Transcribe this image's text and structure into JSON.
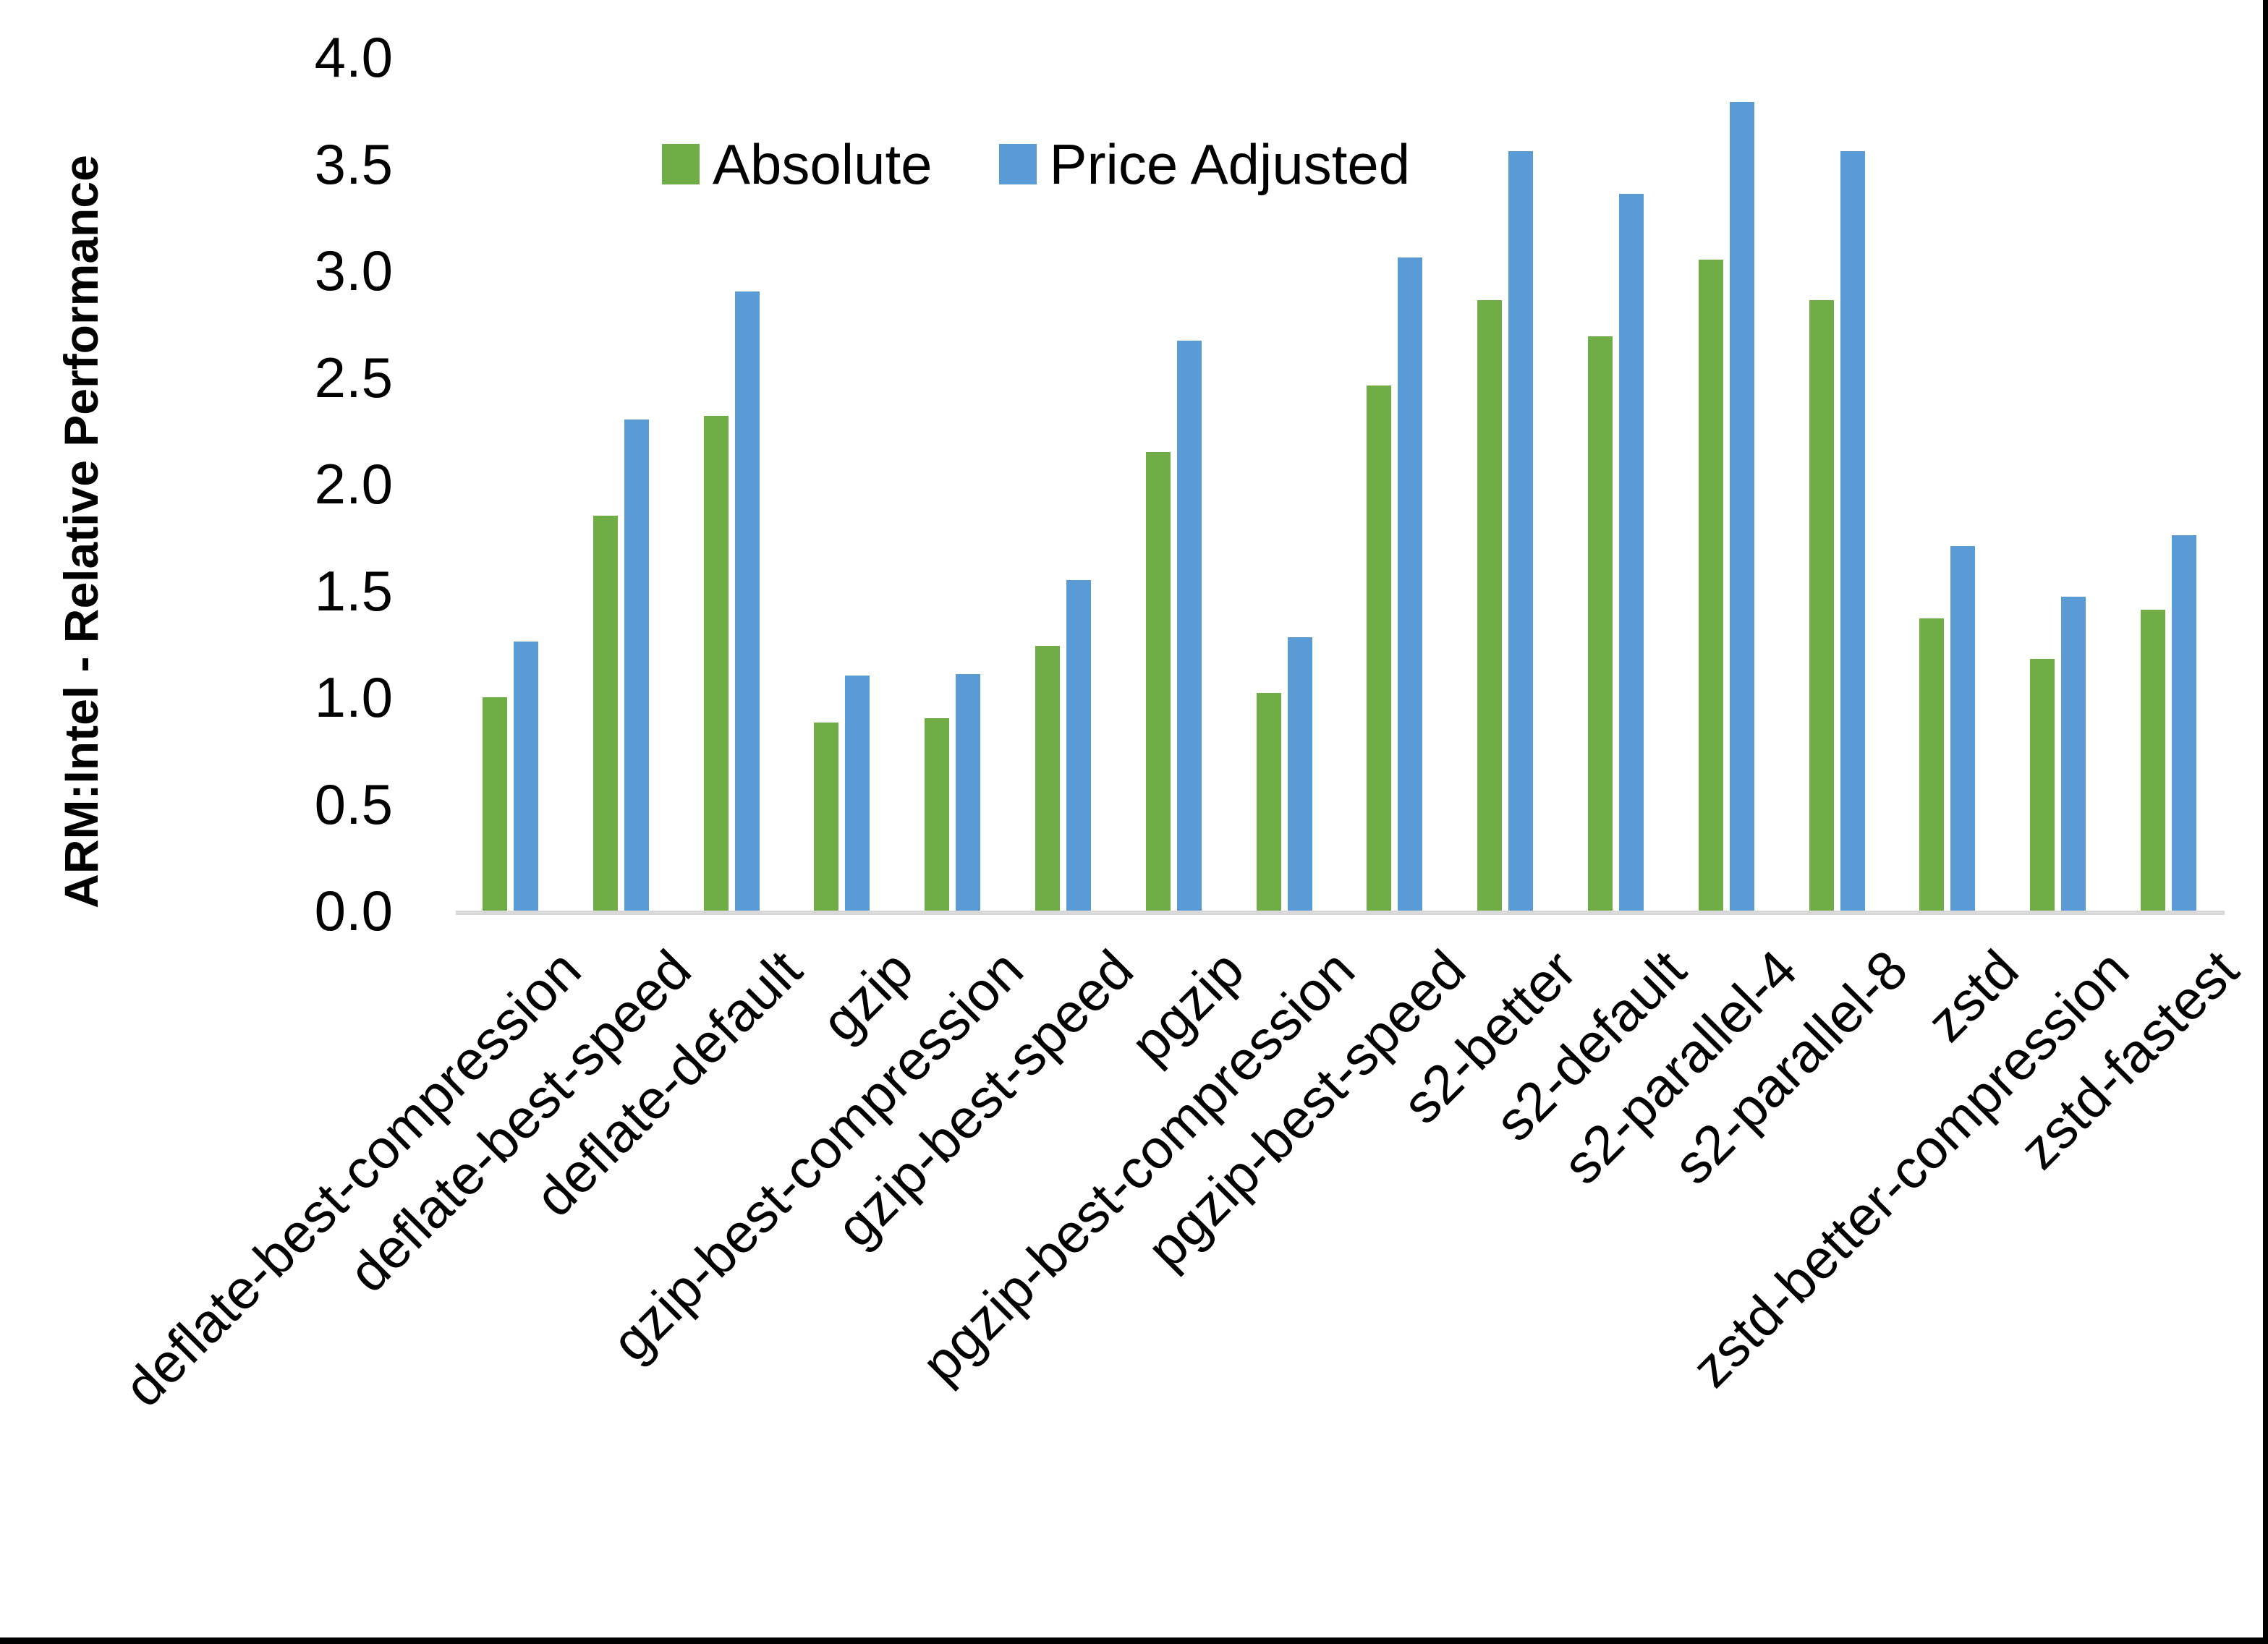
{
  "colors": {
    "absolute_series": "#70AD47",
    "price_adjusted_series": "#5B9BD5",
    "axis_line": "#D9D9D9",
    "frame_border": "#000000",
    "text": "#000000"
  },
  "chart_data": {
    "type": "bar",
    "title": "",
    "xlabel": "",
    "ylabel": "ARM:Intel - Relative Performance",
    "ylim": [
      0.0,
      4.0
    ],
    "ytick_step": 0.5,
    "ytick_labels": [
      "0.0",
      "0.5",
      "1.0",
      "1.5",
      "2.0",
      "2.5",
      "3.0",
      "3.5",
      "4.0"
    ],
    "grid": false,
    "legend_position": "top-center",
    "categories": [
      "deflate-best-compression",
      "deflate-best-speed",
      "deflate-default",
      "gzip",
      "gzip-best-compression",
      "gzip-best-speed",
      "pgzip",
      "pgzip-best-compression",
      "pgzip-best-speed",
      "s2-better",
      "s2-default",
      "s2-parallel-4",
      "s2-parallel-8",
      "zstd",
      "zstd-better-compression",
      "zstd-fastest"
    ],
    "series": [
      {
        "name": "Absolute",
        "color": "#70AD47",
        "values": [
          1.0,
          1.85,
          2.32,
          0.88,
          0.9,
          1.24,
          2.15,
          1.02,
          2.46,
          2.86,
          2.69,
          3.05,
          2.86,
          1.37,
          1.18,
          1.41
        ]
      },
      {
        "name": "Price Adjusted",
        "color": "#5B9BD5",
        "values": [
          1.26,
          2.3,
          2.9,
          1.1,
          1.11,
          1.55,
          2.67,
          1.28,
          3.06,
          3.56,
          3.36,
          3.79,
          3.56,
          1.71,
          1.47,
          1.76
        ]
      }
    ]
  }
}
